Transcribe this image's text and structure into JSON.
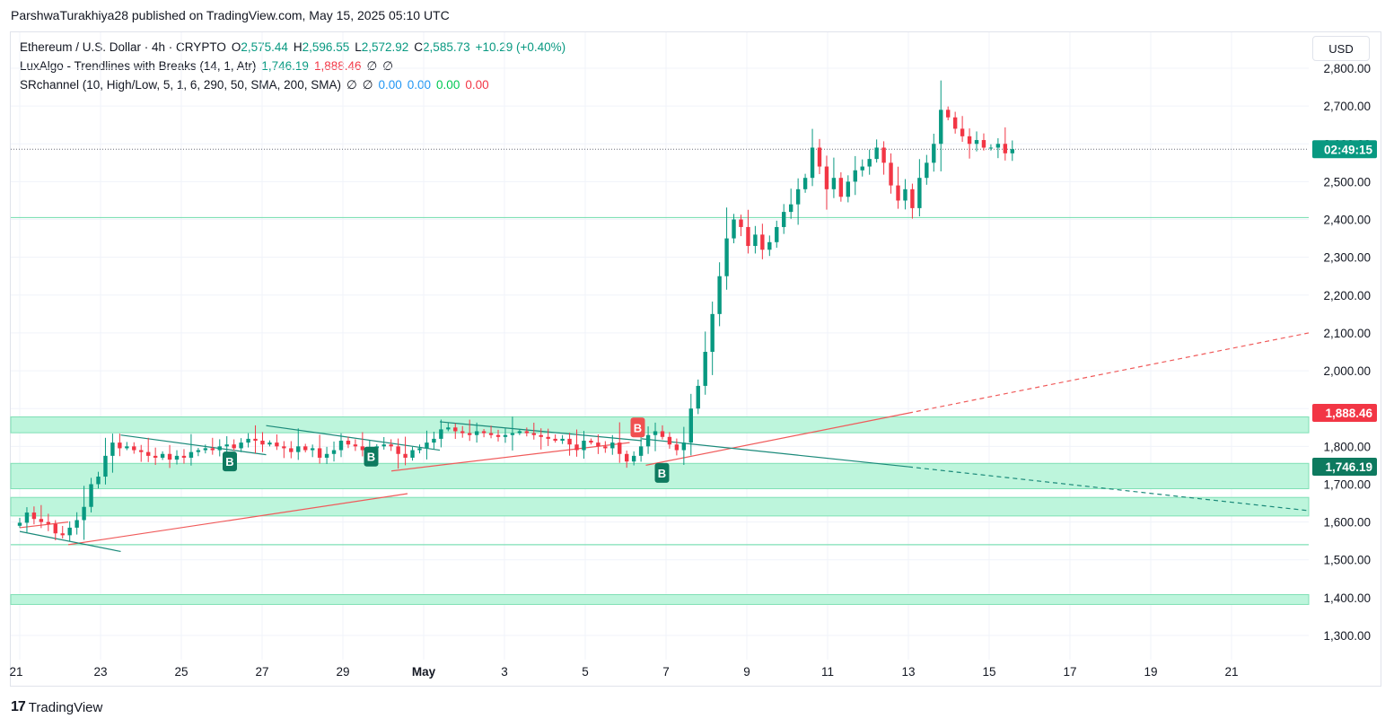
{
  "header": {
    "credit": "ParshwaTurakhiya28 published on TradingView.com, May 15, 2025 05:10 UTC"
  },
  "legend": {
    "symbol": "Ethereum / U.S. Dollar · 4h · CRYPTO",
    "open_label": "O",
    "open": "2,575.44",
    "high_label": "H",
    "high": "2,596.55",
    "low_label": "L",
    "low": "2,572.92",
    "close_label": "C",
    "close": "2,585.73",
    "change": "+10.29 (+0.40%)",
    "indicator1_name": "LuxAlgo - Trendlines with Breaks (14, 1, Atr)",
    "indicator1_v1": "1,746.19",
    "indicator1_v2": "1,888.46",
    "indicator1_v3": "∅",
    "indicator1_v4": "∅",
    "indicator2_name": "SRchannel (10, High/Low, 5, 1, 6, 290, 50, SMA, 200, SMA)",
    "indicator2_v1": "∅",
    "indicator2_v2": "∅",
    "indicator2_v3": "0.00",
    "indicator2_v4": "0.00",
    "indicator2_v5": "0.00",
    "indicator2_v6": "0.00"
  },
  "currency_button": "USD",
  "price_tags": {
    "countdown": "02:49:15",
    "upper_trend": "1,888.46",
    "lower_trend": "1,746.19"
  },
  "footer": {
    "logo_mark": "17",
    "brand": "TradingView"
  },
  "colors": {
    "up": "#089981",
    "down": "#f23645",
    "zone_fill": "#bdf5dc",
    "zone_edge": "#7fe0b5",
    "blue": "#2962ff",
    "green_text": "#22ab94"
  },
  "chart_data": {
    "type": "candlestick",
    "y_axis": {
      "ylim": [
        1250,
        2850
      ],
      "tick_labels": [
        "1,300.00",
        "1,400.00",
        "1,500.00",
        "1,600.00",
        "1,700.00",
        "1,800.00",
        "1,900.00",
        "2,000.00",
        "2,100.00",
        "2,200.00",
        "2,300.00",
        "2,400.00",
        "2,500.00",
        "2,600.00",
        "2,700.00",
        "2,800.00"
      ],
      "tick_values": [
        1300,
        1400,
        1500,
        1600,
        1700,
        1800,
        1900,
        2000,
        2100,
        2200,
        2300,
        2400,
        2500,
        2600,
        2700,
        2800
      ]
    },
    "x_axis": {
      "tick_labels": [
        "21",
        "23",
        "25",
        "27",
        "29",
        "May",
        "3",
        "5",
        "7",
        "9",
        "11",
        "13",
        "15",
        "17",
        "19",
        "21"
      ],
      "tick_days": [
        0,
        2,
        4,
        6,
        8,
        10,
        12,
        14,
        16,
        18,
        20,
        22,
        24,
        26,
        28,
        30
      ]
    },
    "grid": true,
    "last_price": 2585.73,
    "sr_zones": [
      {
        "low": 1836,
        "high": 1878
      },
      {
        "low": 1688,
        "high": 1755
      },
      {
        "low": 1616,
        "high": 1665
      },
      {
        "low": 1382,
        "high": 1408
      }
    ],
    "sr_lines": [
      2405,
      1540
    ],
    "trendlines": [
      {
        "color": "down",
        "dashed": false,
        "points": [
          [
            0.0,
            1585
          ],
          [
            1.2,
            1600
          ]
        ]
      },
      {
        "color": "down",
        "dashed": false,
        "points": [
          [
            1.2,
            1540
          ],
          [
            9.6,
            1675
          ]
        ]
      },
      {
        "color": "down",
        "dashed": false,
        "points": [
          [
            9.2,
            1735
          ],
          [
            15.1,
            1810
          ]
        ]
      },
      {
        "color": "down",
        "dashed": false,
        "points": [
          [
            15.5,
            1750
          ],
          [
            22.0,
            1888
          ]
        ]
      },
      {
        "color": "down",
        "dashed": true,
        "points": [
          [
            22.0,
            1888
          ],
          [
            32.1,
            2100
          ]
        ]
      },
      {
        "color": "up",
        "dashed": false,
        "points": [
          [
            0.0,
            1575
          ],
          [
            2.5,
            1522
          ]
        ]
      },
      {
        "color": "up",
        "dashed": false,
        "points": [
          [
            2.5,
            1830
          ],
          [
            6.1,
            1778
          ]
        ]
      },
      {
        "color": "up",
        "dashed": false,
        "points": [
          [
            6.1,
            1855
          ],
          [
            10.4,
            1790
          ]
        ]
      },
      {
        "color": "up",
        "dashed": false,
        "points": [
          [
            10.4,
            1865
          ],
          [
            15.4,
            1815
          ]
        ]
      },
      {
        "color": "up",
        "dashed": false,
        "points": [
          [
            15.4,
            1820
          ],
          [
            22.0,
            1746
          ]
        ]
      },
      {
        "color": "up",
        "dashed": true,
        "points": [
          [
            22.0,
            1746
          ],
          [
            32.1,
            1630
          ]
        ]
      }
    ],
    "break_labels": [
      {
        "label": "B",
        "type": "up",
        "day": 5.2,
        "price": 1760
      },
      {
        "label": "B",
        "type": "up",
        "day": 8.7,
        "price": 1773
      },
      {
        "label": "B",
        "type": "down",
        "day": 15.3,
        "price": 1850
      },
      {
        "label": "B",
        "type": "up",
        "day": 15.9,
        "price": 1730
      }
    ],
    "candles_4h_close_path": [
      1598,
      1625,
      1608,
      1600,
      1595,
      1570,
      1565,
      1585,
      1605,
      1640,
      1700,
      1720,
      1775,
      1810,
      1795,
      1800,
      1790,
      1785,
      1775,
      1770,
      1780,
      1765,
      1775,
      1770,
      1785,
      1790,
      1795,
      1790,
      1800,
      1805,
      1795,
      1810,
      1820,
      1815,
      1805,
      1810,
      1800,
      1795,
      1785,
      1800,
      1790,
      1795,
      1770,
      1780,
      1790,
      1815,
      1805,
      1800,
      1790,
      1795,
      1800,
      1805,
      1800,
      1780,
      1770,
      1790,
      1795,
      1810,
      1820,
      1845,
      1850,
      1840,
      1835,
      1830,
      1840,
      1835,
      1830,
      1825,
      1830,
      1835,
      1840,
      1835,
      1830,
      1825,
      1820,
      1815,
      1820,
      1805,
      1790,
      1815,
      1810,
      1800,
      1795,
      1810,
      1780,
      1760,
      1775,
      1800,
      1830,
      1840,
      1825,
      1805,
      1790,
      1810,
      1900,
      1960,
      2050,
      2150,
      2250,
      2350,
      2400,
      2380,
      2330,
      2360,
      2320,
      2340,
      2380,
      2420,
      2440,
      2480,
      2510,
      2590,
      2540,
      2480,
      2510,
      2460,
      2500,
      2530,
      2540,
      2560,
      2590,
      2550,
      2490,
      2450,
      2480,
      2430,
      2510,
      2550,
      2600,
      2690,
      2670,
      2640,
      2620,
      2600,
      2610,
      2590,
      2590,
      2600,
      2575,
      2586
    ]
  }
}
